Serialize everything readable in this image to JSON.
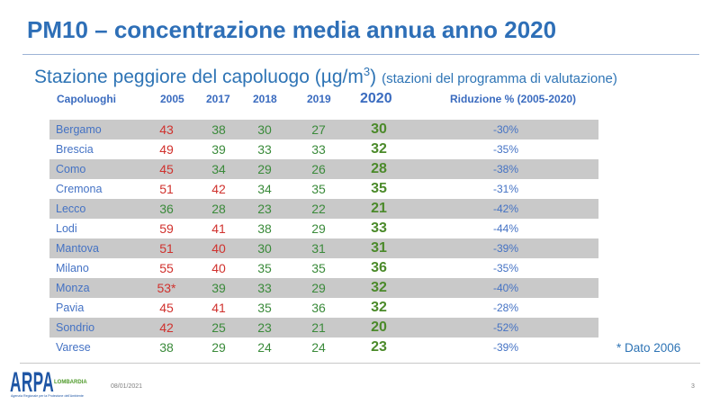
{
  "slide": {
    "title": "PM10 – concentrazione media annua anno 2020",
    "subtitle": {
      "text": "Stazione peggiore del capoluogo",
      "unit_base": "(µg/m",
      "unit_exponent": "3",
      "unit_close": ")",
      "note": "(stazioni del programma di valutazione)"
    },
    "footnote": "* Dato 2006"
  },
  "table": {
    "headers": {
      "city": "Capoluoghi",
      "years": [
        "2005",
        "2017",
        "2018",
        "2019",
        "2020"
      ],
      "reduction": "Riduzione % (2005-2020)"
    },
    "rows": [
      {
        "city": "Bergamo",
        "values": [
          43,
          38,
          30,
          27,
          30
        ],
        "reduction": "-30%"
      },
      {
        "city": "Brescia",
        "values": [
          49,
          39,
          33,
          33,
          32
        ],
        "reduction": "-35%"
      },
      {
        "city": "Como",
        "values": [
          45,
          34,
          29,
          26,
          28
        ],
        "reduction": "-38%"
      },
      {
        "city": "Cremona",
        "values": [
          51,
          42,
          34,
          35,
          35
        ],
        "reduction": "-31%"
      },
      {
        "city": "Lecco",
        "values": [
          36,
          28,
          23,
          22,
          21
        ],
        "reduction": "-42%"
      },
      {
        "city": "Lodi",
        "values": [
          59,
          41,
          38,
          29,
          33
        ],
        "reduction": "-44%"
      },
      {
        "city": "Mantova",
        "values": [
          51,
          40,
          30,
          31,
          31
        ],
        "reduction": "-39%"
      },
      {
        "city": "Milano",
        "values": [
          55,
          40,
          35,
          35,
          36
        ],
        "reduction": "-35%"
      },
      {
        "city": "Monza",
        "values": [
          "53*",
          39,
          33,
          29,
          32
        ],
        "reduction": "-40%"
      },
      {
        "city": "Pavia",
        "values": [
          45,
          41,
          35,
          36,
          32
        ],
        "reduction": "-28%"
      },
      {
        "city": "Sondrio",
        "values": [
          42,
          25,
          23,
          21,
          20
        ],
        "reduction": "-52%"
      },
      {
        "city": "Varese",
        "values": [
          38,
          29,
          24,
          24,
          23
        ],
        "reduction": "-39%"
      }
    ]
  },
  "colors": {
    "value_over_limit": "#d0312d",
    "value_under_limit": "#3a8a3a",
    "value_latest_year": "#4b8a2a",
    "row_shade": "#c9c9c9"
  },
  "footer": {
    "date": "08/01/2021",
    "page_number": "3"
  },
  "logo": {
    "mark": "ARPA",
    "region": "LOMBARDIA",
    "tagline": "Agenzia Regionale per la Protezione dell'Ambiente"
  }
}
